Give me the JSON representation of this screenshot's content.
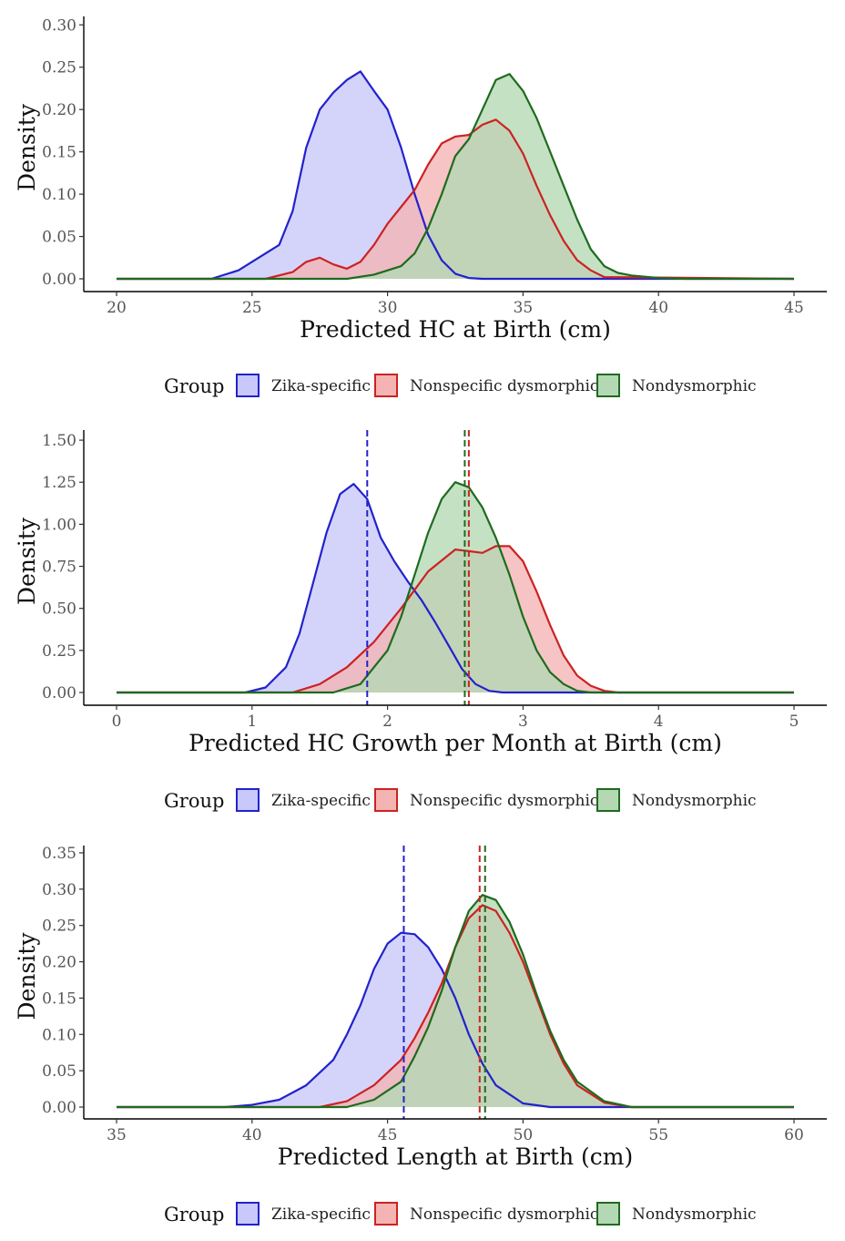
{
  "chart_data": [
    {
      "type": "area",
      "xlabel": "Predicted HC at Birth (cm)",
      "ylabel": "Density",
      "xlim": [
        20,
        45
      ],
      "ylim": [
        0,
        0.31
      ],
      "xticks": [
        20,
        25,
        30,
        35,
        40,
        45
      ],
      "xtick_labels": [
        "20",
        "25",
        "30",
        "35",
        "40",
        "45"
      ],
      "yticks": [
        0,
        0.05,
        0.1,
        0.15,
        0.2,
        0.25,
        0.3
      ],
      "ytick_labels": [
        "0.00",
        "0.05",
        "0.10",
        "0.15",
        "0.20",
        "0.25",
        "0.30"
      ],
      "legend": {
        "title": "Group",
        "position": "bottom"
      },
      "series": [
        {
          "name": "Zika-specific",
          "color": "#2222cc",
          "fill": "#c8c8fa",
          "x": [
            20,
            23.5,
            24.5,
            25.5,
            26.0,
            26.5,
            27.0,
            27.5,
            28.0,
            28.5,
            29.0,
            29.5,
            30.0,
            30.5,
            31.0,
            31.5,
            32.0,
            32.5,
            33.0,
            33.5,
            45
          ],
          "y": [
            0,
            0,
            0.01,
            0.03,
            0.04,
            0.08,
            0.155,
            0.2,
            0.22,
            0.235,
            0.245,
            0.222,
            0.2,
            0.155,
            0.1,
            0.052,
            0.022,
            0.006,
            0.001,
            0,
            0
          ]
        },
        {
          "name": "Nonspecific dysmorphic",
          "color": "#cc2222",
          "fill": "#f4b4b4",
          "x": [
            20,
            25.5,
            26.5,
            27.0,
            27.5,
            28.0,
            28.5,
            29.0,
            29.5,
            30.0,
            30.5,
            31.0,
            31.5,
            32.0,
            32.5,
            33.0,
            33.5,
            34.0,
            34.5,
            35.0,
            35.5,
            36.0,
            36.5,
            37.0,
            37.5,
            38.0,
            45
          ],
          "y": [
            0,
            0,
            0.008,
            0.02,
            0.025,
            0.017,
            0.012,
            0.02,
            0.04,
            0.065,
            0.085,
            0.105,
            0.135,
            0.16,
            0.168,
            0.17,
            0.182,
            0.188,
            0.175,
            0.148,
            0.11,
            0.075,
            0.045,
            0.022,
            0.01,
            0.002,
            0
          ]
        },
        {
          "name": "Nondysmorphic",
          "color": "#1e6b1e",
          "fill": "#b4d8b4",
          "x": [
            20,
            28.5,
            29.5,
            30.5,
            31.0,
            31.5,
            32.0,
            32.5,
            33.0,
            33.5,
            34.0,
            34.5,
            35.0,
            35.5,
            36.0,
            36.5,
            37.0,
            37.5,
            38.0,
            38.5,
            39.0,
            40.0,
            41.0,
            45
          ],
          "y": [
            0,
            0,
            0.005,
            0.015,
            0.03,
            0.06,
            0.1,
            0.145,
            0.165,
            0.2,
            0.235,
            0.242,
            0.222,
            0.19,
            0.15,
            0.11,
            0.07,
            0.035,
            0.015,
            0.007,
            0.004,
            0.001,
            0,
            0
          ]
        }
      ],
      "mean_lines": []
    },
    {
      "type": "area",
      "xlabel": "Predicted HC Growth per Month at Birth (cm)",
      "ylabel": "Density",
      "xlim": [
        0,
        5
      ],
      "ylim": [
        0,
        1.56
      ],
      "xticks": [
        0,
        1,
        2,
        3,
        4,
        5
      ],
      "xtick_labels": [
        "0",
        "1",
        "2",
        "3",
        "4",
        "5"
      ],
      "yticks": [
        0,
        0.25,
        0.5,
        0.75,
        1.0,
        1.25,
        1.5
      ],
      "ytick_labels": [
        "0.00",
        "0.25",
        "0.50",
        "0.75",
        "1.00",
        "1.25",
        "1.50"
      ],
      "legend": {
        "title": "Group",
        "position": "bottom"
      },
      "series": [
        {
          "name": "Zika-specific",
          "color": "#2222cc",
          "fill": "#c8c8fa",
          "x": [
            0,
            0.95,
            1.1,
            1.25,
            1.35,
            1.45,
            1.55,
            1.65,
            1.75,
            1.85,
            1.95,
            2.05,
            2.15,
            2.25,
            2.35,
            2.45,
            2.55,
            2.65,
            2.75,
            2.85,
            5
          ],
          "y": [
            0,
            0,
            0.03,
            0.15,
            0.35,
            0.65,
            0.95,
            1.18,
            1.24,
            1.15,
            0.92,
            0.78,
            0.66,
            0.55,
            0.42,
            0.28,
            0.14,
            0.05,
            0.01,
            0,
            0
          ]
        },
        {
          "name": "Nonspecific dysmorphic",
          "color": "#cc2222",
          "fill": "#f4b4b4",
          "x": [
            0,
            1.3,
            1.5,
            1.7,
            1.9,
            2.1,
            2.3,
            2.5,
            2.6,
            2.7,
            2.8,
            2.9,
            3.0,
            3.1,
            3.2,
            3.3,
            3.4,
            3.5,
            3.6,
            3.7,
            5
          ],
          "y": [
            0,
            0,
            0.05,
            0.15,
            0.3,
            0.5,
            0.72,
            0.85,
            0.84,
            0.83,
            0.87,
            0.87,
            0.78,
            0.6,
            0.4,
            0.22,
            0.1,
            0.04,
            0.01,
            0,
            0
          ]
        },
        {
          "name": "Nondysmorphic",
          "color": "#1e6b1e",
          "fill": "#b4d8b4",
          "x": [
            0,
            1.6,
            1.8,
            2.0,
            2.1,
            2.2,
            2.3,
            2.4,
            2.5,
            2.6,
            2.7,
            2.8,
            2.9,
            3.0,
            3.1,
            3.2,
            3.3,
            3.4,
            3.5,
            5
          ],
          "y": [
            0,
            0,
            0.05,
            0.25,
            0.45,
            0.7,
            0.95,
            1.15,
            1.25,
            1.22,
            1.1,
            0.92,
            0.7,
            0.45,
            0.25,
            0.12,
            0.05,
            0.01,
            0,
            0
          ]
        }
      ],
      "mean_lines": [
        {
          "group": "Zika-specific",
          "x": 1.85
        },
        {
          "group": "Nondysmorphic",
          "x": 2.57
        },
        {
          "group": "Nonspecific dysmorphic",
          "x": 2.6
        }
      ]
    },
    {
      "type": "area",
      "xlabel": "Predicted Length at Birth (cm)",
      "ylabel": "Density",
      "xlim": [
        35,
        60
      ],
      "ylim": [
        0,
        0.36
      ],
      "xticks": [
        35,
        40,
        45,
        50,
        55,
        60
      ],
      "xtick_labels": [
        "35",
        "40",
        "45",
        "50",
        "55",
        "60"
      ],
      "yticks": [
        0,
        0.05,
        0.1,
        0.15,
        0.2,
        0.25,
        0.3,
        0.35
      ],
      "ytick_labels": [
        "0.00",
        "0.05",
        "0.10",
        "0.15",
        "0.20",
        "0.25",
        "0.30",
        "0.35"
      ],
      "legend": {
        "title": "Group",
        "position": "bottom"
      },
      "series": [
        {
          "name": "Zika-specific",
          "color": "#2222cc",
          "fill": "#c8c8fa",
          "x": [
            35,
            39.0,
            40.0,
            41.0,
            42.0,
            43.0,
            43.5,
            44.0,
            44.5,
            45.0,
            45.5,
            46.0,
            46.5,
            47.0,
            47.5,
            48.0,
            48.5,
            49.0,
            50.0,
            51.0,
            60
          ],
          "y": [
            0,
            0,
            0.003,
            0.01,
            0.03,
            0.065,
            0.1,
            0.14,
            0.19,
            0.225,
            0.24,
            0.238,
            0.22,
            0.19,
            0.15,
            0.1,
            0.06,
            0.03,
            0.005,
            0,
            0
          ]
        },
        {
          "name": "Nonspecific dysmorphic",
          "color": "#cc2222",
          "fill": "#f4b4b4",
          "x": [
            35,
            42.5,
            43.5,
            44.5,
            45.5,
            46.0,
            46.5,
            47.0,
            47.5,
            48.0,
            48.5,
            49.0,
            49.5,
            50.0,
            50.5,
            51.0,
            51.5,
            52.0,
            53.0,
            54.0,
            60
          ],
          "y": [
            0,
            0,
            0.008,
            0.03,
            0.065,
            0.095,
            0.13,
            0.17,
            0.22,
            0.26,
            0.278,
            0.27,
            0.24,
            0.2,
            0.15,
            0.1,
            0.06,
            0.03,
            0.006,
            0,
            0
          ]
        },
        {
          "name": "Nondysmorphic",
          "color": "#1e6b1e",
          "fill": "#b4d8b4",
          "x": [
            35,
            43.5,
            44.5,
            45.5,
            46.0,
            46.5,
            47.0,
            47.5,
            48.0,
            48.5,
            49.0,
            49.5,
            50.0,
            50.5,
            51.0,
            51.5,
            52.0,
            53.0,
            54.0,
            60
          ],
          "y": [
            0,
            0,
            0.01,
            0.035,
            0.07,
            0.11,
            0.16,
            0.22,
            0.27,
            0.292,
            0.285,
            0.255,
            0.21,
            0.155,
            0.105,
            0.065,
            0.035,
            0.008,
            0,
            0
          ]
        }
      ],
      "mean_lines": [
        {
          "group": "Zika-specific",
          "x": 45.6
        },
        {
          "group": "Nonspecific dysmorphic",
          "x": 48.4
        },
        {
          "group": "Nondysmorphic",
          "x": 48.6
        }
      ]
    }
  ]
}
